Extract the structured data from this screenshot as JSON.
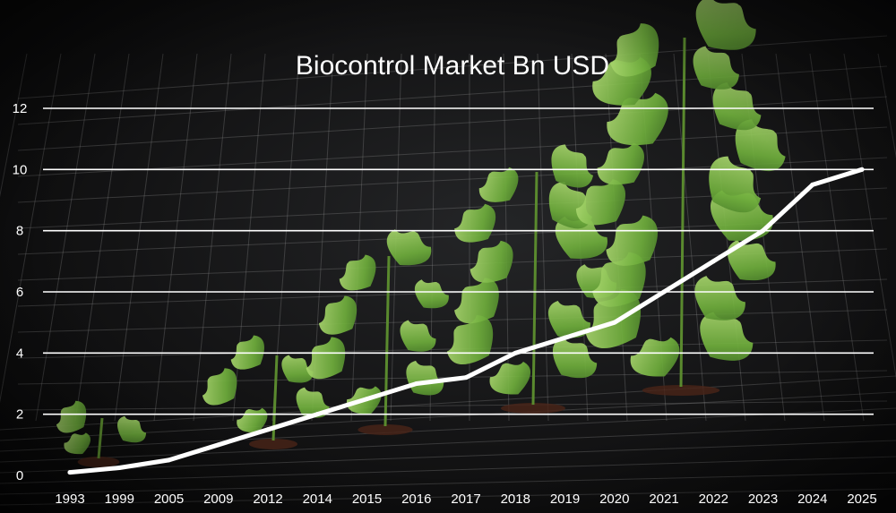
{
  "chart_data": {
    "type": "line",
    "title": "Biocontrol Market Bn USD",
    "categories": [
      "1993",
      "1999",
      "2005",
      "2009",
      "2012",
      "2014",
      "2015",
      "2016",
      "2017",
      "2018",
      "2019",
      "2020",
      "2021",
      "2022",
      "2023",
      "2024",
      "2025"
    ],
    "series": [
      {
        "values": [
          0.1,
          0.25,
          0.5,
          1.0,
          1.5,
          2.0,
          2.5,
          3.0,
          3.2,
          4.0,
          4.5,
          5.0,
          6.0,
          7.0,
          8.0,
          9.5,
          10.0
        ]
      }
    ],
    "yticks": [
      0,
      2,
      4,
      6,
      8,
      10,
      12
    ],
    "ylim": [
      0,
      12
    ],
    "grid": true,
    "legend": "none",
    "colors": {
      "line": "#ffffff",
      "grid": "#ffffff",
      "background": "#141415",
      "plants": "#6fae3c"
    }
  }
}
